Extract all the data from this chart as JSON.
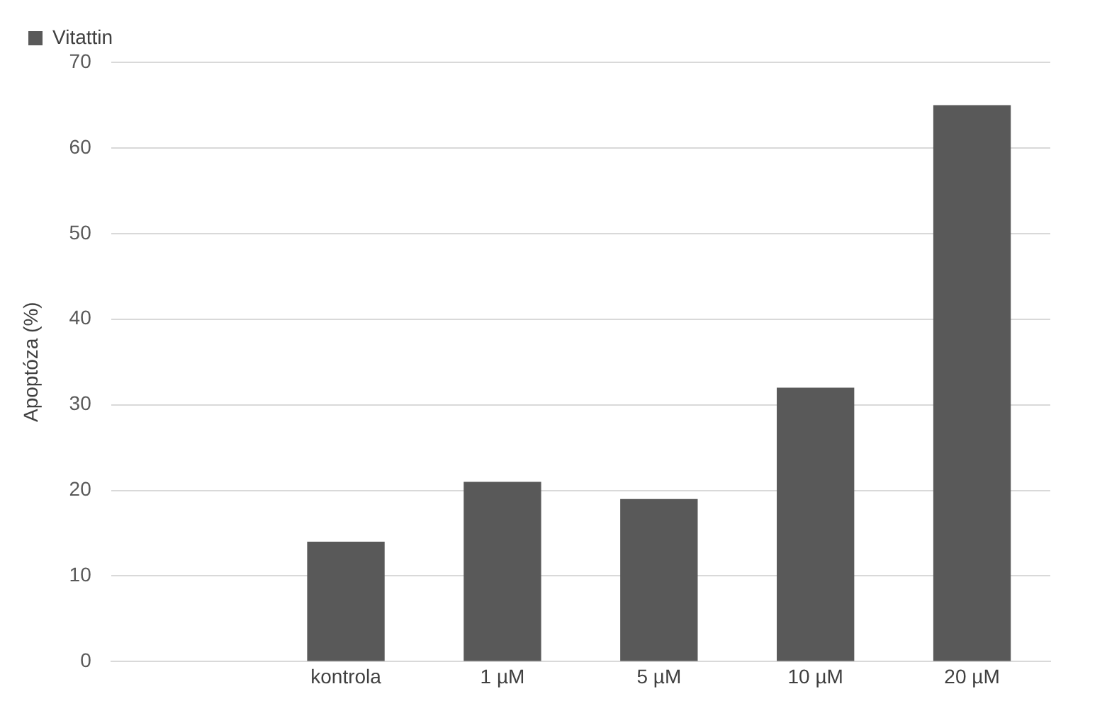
{
  "chart_data": {
    "type": "bar",
    "ylabel": "Apoptóza (%)",
    "categories": [
      null,
      "kontrola",
      "1 µM",
      "5 µM",
      "10 µM",
      "20 µM"
    ],
    "series": [
      {
        "name": "Vitattin",
        "color": "#595959",
        "values": [
          null,
          14,
          21,
          19,
          32,
          65
        ]
      }
    ],
    "ylim": [
      0,
      70
    ],
    "yticks": [
      0,
      10,
      20,
      30,
      40,
      50,
      60,
      70
    ],
    "grid": "y",
    "legend": "top left"
  }
}
